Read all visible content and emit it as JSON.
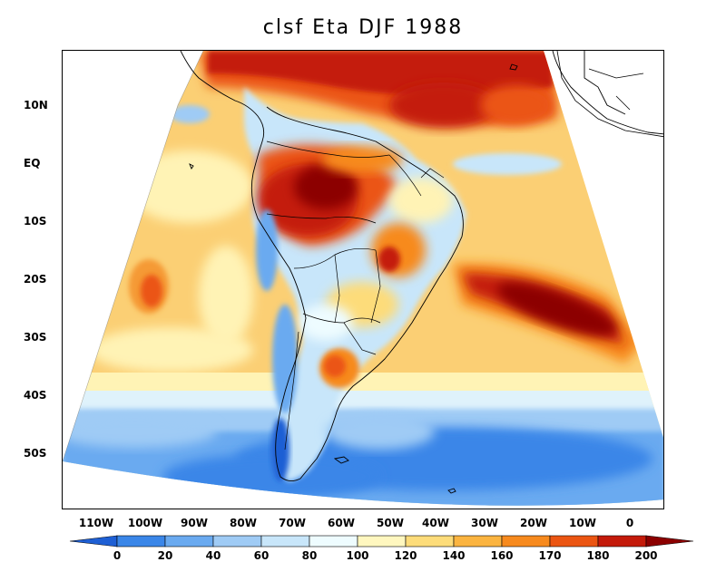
{
  "title": "clsf Eta DJF 1988",
  "lat_labels": [
    "10N",
    "EQ",
    "10S",
    "20S",
    "30S",
    "40S",
    "50S"
  ],
  "lon_labels": [
    "110W",
    "100W",
    "90W",
    "80W",
    "70W",
    "60W",
    "50W",
    "40W",
    "30W",
    "20W",
    "10W",
    "0"
  ],
  "colorbar": {
    "labels": [
      "0",
      "20",
      "40",
      "60",
      "80",
      "100",
      "120",
      "140",
      "160",
      "170",
      "180",
      "200"
    ],
    "colors": [
      "#1e5fd4",
      "#3a86e8",
      "#6aaaf0",
      "#9fcbf5",
      "#c8e6fa",
      "#eefcff",
      "#fff7bf",
      "#fddc7a",
      "#fbb440",
      "#f78a1e",
      "#eb5512",
      "#c41a0a",
      "#8c0000"
    ]
  }
}
